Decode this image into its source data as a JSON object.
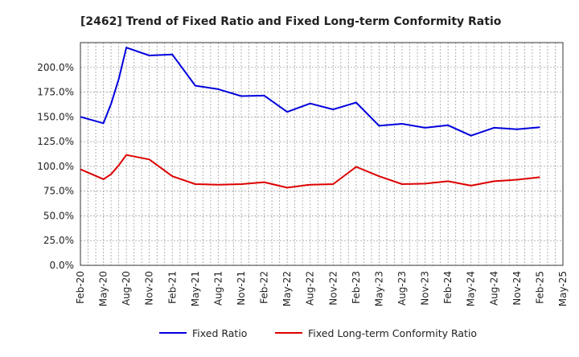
{
  "chart_data": {
    "type": "line",
    "title": "[2462]  Trend of Fixed Ratio and Fixed Long-term Conformity Ratio",
    "xlabel": "",
    "ylabel": "",
    "ylim": [
      0,
      225
    ],
    "y_ticks": [
      0,
      25,
      50,
      75,
      100,
      125,
      150,
      175,
      200
    ],
    "y_tick_labels": [
      "0.0%",
      "25.0%",
      "50.0%",
      "75.0%",
      "100.0%",
      "125.0%",
      "150.0%",
      "175.0%",
      "200.0%"
    ],
    "x_tick_labels": [
      "Feb-20",
      "May-20",
      "Aug-20",
      "Nov-20",
      "Feb-21",
      "May-21",
      "Aug-21",
      "Nov-21",
      "Feb-22",
      "May-22",
      "Aug-22",
      "Nov-22",
      "Feb-23",
      "May-23",
      "Aug-23",
      "Nov-23",
      "Feb-24",
      "May-24",
      "Aug-24",
      "Nov-24",
      "Feb-25",
      "May-25"
    ],
    "x_unit": "month",
    "x_range": [
      "2020-02",
      "2025-05"
    ],
    "grid": true,
    "legend_position": "bottom-center",
    "series": [
      {
        "name": "Fixed Ratio",
        "color": "#0000dd",
        "points": [
          [
            "2020-02",
            150
          ],
          [
            "2020-05",
            143.5
          ],
          [
            "2020-06",
            163
          ],
          [
            "2020-07",
            188
          ],
          [
            "2020-08",
            220
          ],
          [
            "2020-11",
            212
          ],
          [
            "2021-02",
            213
          ],
          [
            "2021-05",
            181.5
          ],
          [
            "2021-08",
            178
          ],
          [
            "2021-11",
            171
          ],
          [
            "2022-02",
            171.5
          ],
          [
            "2022-05",
            155
          ],
          [
            "2022-08",
            163.5
          ],
          [
            "2022-11",
            157.5
          ],
          [
            "2023-02",
            164.5
          ],
          [
            "2023-05",
            141
          ],
          [
            "2023-08",
            143
          ],
          [
            "2023-11",
            139
          ],
          [
            "2024-02",
            141.5
          ],
          [
            "2024-05",
            131
          ],
          [
            "2024-08",
            139
          ],
          [
            "2024-11",
            137.5
          ],
          [
            "2025-02",
            139.5
          ]
        ]
      },
      {
        "name": "Fixed Long-term Conformity Ratio",
        "color": "#dd0000",
        "points": [
          [
            "2020-02",
            97
          ],
          [
            "2020-05",
            87
          ],
          [
            "2020-06",
            92
          ],
          [
            "2020-07",
            101
          ],
          [
            "2020-08",
            111.5
          ],
          [
            "2020-11",
            107
          ],
          [
            "2021-02",
            90
          ],
          [
            "2021-05",
            82
          ],
          [
            "2021-08",
            81.5
          ],
          [
            "2021-11",
            82
          ],
          [
            "2022-02",
            84
          ],
          [
            "2022-05",
            78.5
          ],
          [
            "2022-08",
            81.5
          ],
          [
            "2022-11",
            82
          ],
          [
            "2023-02",
            99.5
          ],
          [
            "2023-05",
            90
          ],
          [
            "2023-08",
            82
          ],
          [
            "2023-11",
            82.5
          ],
          [
            "2024-02",
            85
          ],
          [
            "2024-05",
            80.5
          ],
          [
            "2024-08",
            85
          ],
          [
            "2024-11",
            86.5
          ],
          [
            "2025-02",
            89
          ]
        ]
      }
    ]
  }
}
